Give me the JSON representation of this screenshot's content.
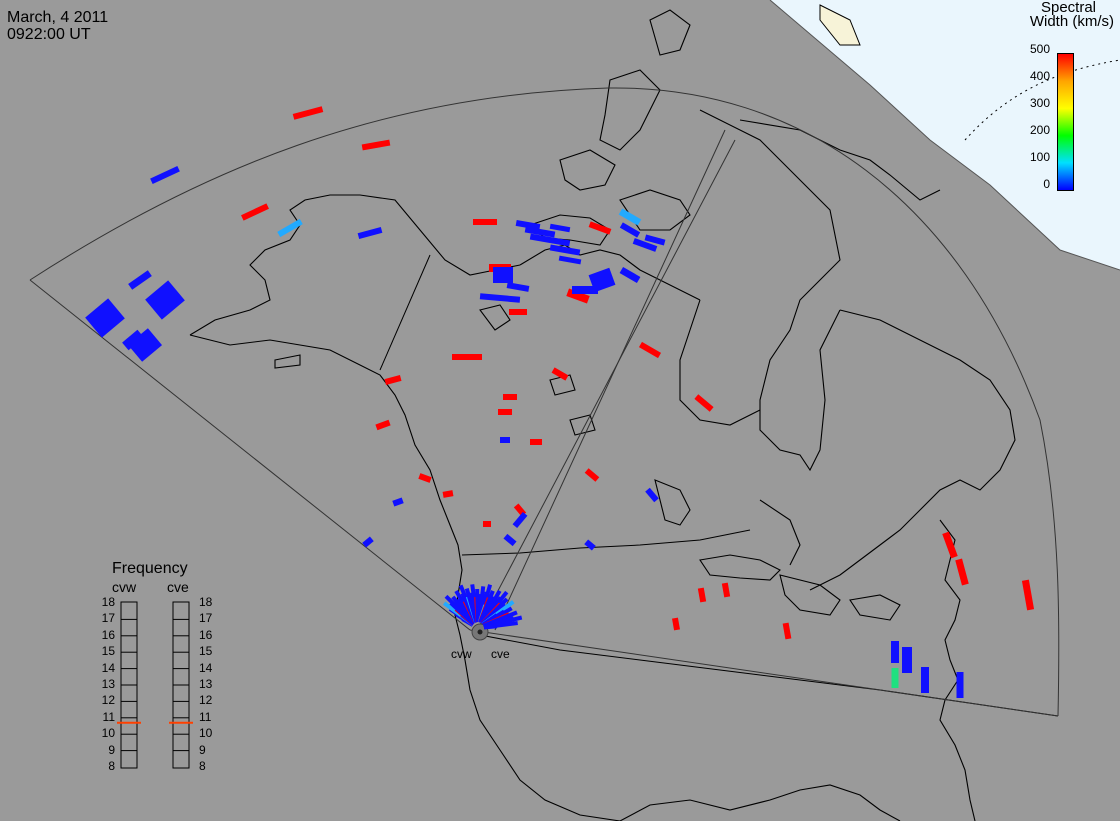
{
  "header": {
    "date": "March, 4 2011",
    "time": "0922:00 UT"
  },
  "colorbar": {
    "title_line1": "Spectral",
    "title_line2": "Width (km/s)",
    "ticks": [
      "500",
      "400",
      "300",
      "200",
      "100",
      "0"
    ],
    "colors": [
      "#ff0000",
      "#ffa500",
      "#ffff00",
      "#00ff00",
      "#00e0ff",
      "#0000ff"
    ]
  },
  "frequency": {
    "title": "Frequency",
    "left_label": "cvw",
    "right_label": "cve",
    "scale": [
      "18",
      "17",
      "16",
      "15",
      "14",
      "13",
      "12",
      "11",
      "10",
      "9",
      "8"
    ],
    "cvw_value": 11,
    "cve_value": 11,
    "marker_color": "#ff4000"
  },
  "sites": {
    "west": "cvw",
    "east": "cve"
  },
  "colors": {
    "background": "#9a9a9a",
    "daylight": "#e8f6ff",
    "low_width": "#1010ff",
    "high_width": "#ff0000"
  }
}
